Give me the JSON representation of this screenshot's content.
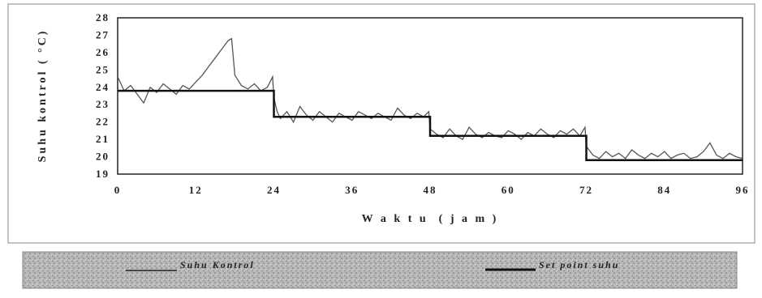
{
  "chart_data": {
    "type": "line",
    "title": "",
    "xlabel": "W a k t u  ( j a m )",
    "ylabel": "Suhu kontrol ( °C)",
    "xlim": [
      0,
      96
    ],
    "ylim": [
      19,
      28
    ],
    "x_ticks": [
      "0",
      "12",
      "24",
      "36",
      "48",
      "60",
      "72",
      "84",
      "96"
    ],
    "y_ticks": [
      "19",
      "20",
      "21",
      "22",
      "23",
      "24",
      "25",
      "26",
      "27",
      "28"
    ],
    "grid": false,
    "legend_position": "bottom",
    "series": [
      {
        "name": "Suhu Kontrol",
        "color": "#555555",
        "x": [
          0,
          1,
          2,
          3,
          4,
          5,
          6,
          7,
          8,
          9,
          10,
          11,
          12,
          13,
          14,
          15,
          16,
          17,
          17.5,
          18,
          19,
          20,
          21,
          22,
          23,
          23.8,
          24,
          24.5,
          25,
          26,
          27,
          28,
          29,
          30,
          31,
          32,
          33,
          34,
          35,
          36,
          37,
          38,
          39,
          40,
          41,
          42,
          43,
          44,
          45,
          46,
          47,
          47.8,
          48,
          49,
          50,
          51,
          52,
          53,
          54,
          55,
          56,
          57,
          58,
          59,
          60,
          61,
          62,
          63,
          64,
          65,
          66,
          67,
          68,
          69,
          70,
          71,
          71.8,
          72,
          73,
          74,
          75,
          76,
          77,
          78,
          79,
          80,
          81,
          82,
          83,
          84,
          85,
          86,
          87,
          88,
          89,
          90,
          91,
          92,
          93,
          94,
          95,
          96
        ],
        "y": [
          24.6,
          23.8,
          24.1,
          23.6,
          23.1,
          24.0,
          23.7,
          24.2,
          23.9,
          23.6,
          24.1,
          23.9,
          24.3,
          24.7,
          25.2,
          25.7,
          26.2,
          26.7,
          26.8,
          24.7,
          24.1,
          23.9,
          24.2,
          23.8,
          24.0,
          24.6,
          23.4,
          22.6,
          22.2,
          22.6,
          22.0,
          22.9,
          22.4,
          22.1,
          22.6,
          22.3,
          22.0,
          22.5,
          22.3,
          22.1,
          22.6,
          22.4,
          22.2,
          22.5,
          22.3,
          22.1,
          22.8,
          22.4,
          22.2,
          22.5,
          22.3,
          22.6,
          21.6,
          21.3,
          21.1,
          21.6,
          21.2,
          21.0,
          21.7,
          21.3,
          21.1,
          21.4,
          21.2,
          21.1,
          21.5,
          21.3,
          21.0,
          21.4,
          21.2,
          21.6,
          21.3,
          21.1,
          21.5,
          21.3,
          21.6,
          21.2,
          21.7,
          20.6,
          20.1,
          19.9,
          20.3,
          20.0,
          20.2,
          19.9,
          20.4,
          20.1,
          19.9,
          20.2,
          20.0,
          20.3,
          19.9,
          20.1,
          20.2,
          19.9,
          20.0,
          20.3,
          20.8,
          20.1,
          19.9,
          20.2,
          20.0,
          19.9
        ]
      },
      {
        "name": "Set point suhu",
        "color": "#111111",
        "x": [
          0,
          24,
          24,
          48,
          48,
          72,
          72,
          96
        ],
        "y": [
          23.8,
          23.8,
          22.3,
          22.3,
          21.2,
          21.2,
          19.8,
          19.8
        ]
      }
    ]
  }
}
